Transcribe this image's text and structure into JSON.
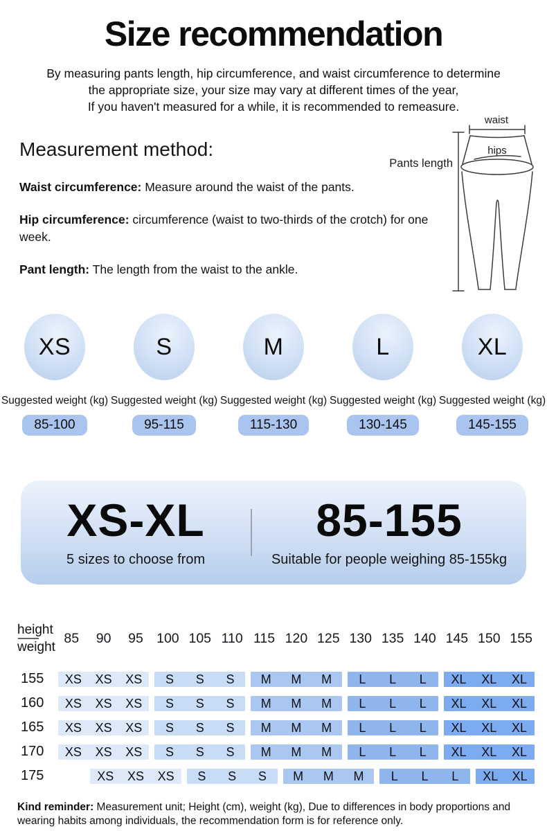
{
  "page": {
    "title": "Size recommendation",
    "intro_lines": [
      "By measuring pants length, hip circumference, and waist circumference to determine",
      "the appropriate size, your size may vary at different times of the year,",
      "If you haven't measured for a while, it is recommended to remeasure."
    ]
  },
  "measurement": {
    "heading": "Measurement method:",
    "items": [
      {
        "label": "Waist circumference:",
        "text": " Measure around the waist of the pants."
      },
      {
        "label": "Hip circumference:",
        "text": " circumference (waist to two-thirds of the crotch) for one week."
      },
      {
        "label": "Pant length:",
        "text": " The length from the waist to the ankle."
      }
    ],
    "diagram": {
      "waist_label": "waist",
      "hips_label": "hips",
      "length_label": "Pants length"
    }
  },
  "sizes": {
    "suggested_weight_label": "Suggested weight (kg)",
    "items": [
      {
        "size": "XS",
        "weight": "85-100"
      },
      {
        "size": "S",
        "weight": "95-115"
      },
      {
        "size": "M",
        "weight": "115-130"
      },
      {
        "size": "L",
        "weight": "130-145"
      },
      {
        "size": "XL",
        "weight": "145-155"
      }
    ]
  },
  "banner": {
    "range": "XS-XL",
    "range_sub": "5 sizes to choose from",
    "weight_range": "85-155",
    "weight_sub": "Suitable for people weighing 85-155kg"
  },
  "table": {
    "header_numerator": "height",
    "header_denominator": "weight",
    "columns": [
      "85",
      "90",
      "95",
      "100",
      "105",
      "110",
      "115",
      "120",
      "125",
      "130",
      "135",
      "140",
      "145",
      "150",
      "155"
    ],
    "rows": [
      {
        "height": "155",
        "offset": 0,
        "groups": [
          [
            "XS",
            3
          ],
          [
            "S",
            3
          ],
          [
            "M",
            3
          ],
          [
            "L",
            3
          ],
          [
            "XL",
            3
          ]
        ]
      },
      {
        "height": "160",
        "offset": 0,
        "groups": [
          [
            "XS",
            3
          ],
          [
            "S",
            3
          ],
          [
            "M",
            3
          ],
          [
            "L",
            3
          ],
          [
            "XL",
            3
          ]
        ]
      },
      {
        "height": "165",
        "offset": 0,
        "groups": [
          [
            "XS",
            3
          ],
          [
            "S",
            3
          ],
          [
            "M",
            3
          ],
          [
            "L",
            3
          ],
          [
            "XL",
            3
          ]
        ]
      },
      {
        "height": "170",
        "offset": 0,
        "groups": [
          [
            "XS",
            3
          ],
          [
            "S",
            3
          ],
          [
            "M",
            3
          ],
          [
            "L",
            3
          ],
          [
            "XL",
            3
          ]
        ]
      },
      {
        "height": "175",
        "offset": 1,
        "groups": [
          [
            "XS",
            3
          ],
          [
            "S",
            3
          ],
          [
            "M",
            3
          ],
          [
            "L",
            3
          ],
          [
            "XL",
            2
          ]
        ]
      }
    ]
  },
  "reminder": {
    "label": "Kind reminder:",
    "text": " Measurement unit; Height (cm), weight (kg), Due to differences in body proportions and wearing habits among individuals, the recommendation form is for reference only."
  },
  "colors": {
    "xs": "#dde9f8",
    "s": "#c9dcf5",
    "m": "#a9c7f0",
    "l": "#8fb5ed",
    "xl": "#7dabf0",
    "pill": "#a9c4ee",
    "circle-top": "#ebf3fc",
    "circle-edge": "#b7cdeb",
    "banner-top": "#edf3fc",
    "banner-bottom": "#b5cdec"
  }
}
